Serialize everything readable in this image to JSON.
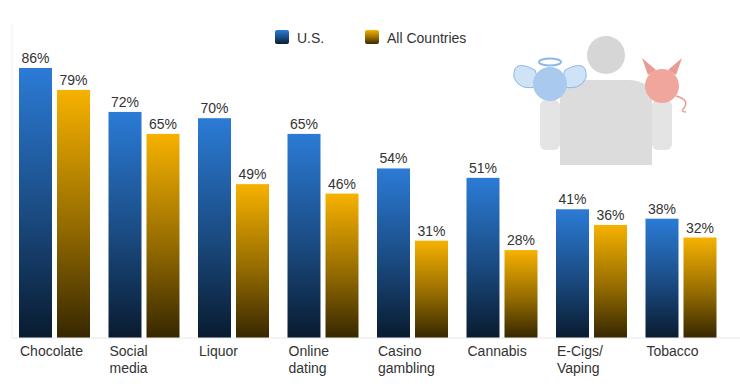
{
  "chart_data": {
    "type": "bar",
    "categories": [
      "Chocolate",
      "Social media",
      "Liquor",
      "Online dating",
      "Casino gambling",
      "Cannabis",
      "E-Cigs/ Vaping",
      "Tobacco"
    ],
    "series": [
      {
        "name": "U.S.",
        "color": "#2b7bd6",
        "values": [
          86,
          72,
          70,
          65,
          54,
          51,
          41,
          38
        ],
        "value_labels": [
          "86%",
          "72%",
          "70%",
          "65%",
          "54%",
          "51%",
          "41%",
          "38%"
        ]
      },
      {
        "name": "All Countries",
        "color": "#f7b200",
        "values": [
          79,
          65,
          49,
          46,
          31,
          28,
          36,
          32
        ],
        "value_labels": [
          "79%",
          "65%",
          "49%",
          "46%",
          "31%",
          "28%",
          "36%",
          "32%"
        ]
      }
    ],
    "ylim": [
      0,
      100
    ],
    "legend": "top",
    "data_labels": true,
    "tick_labels": "x",
    "grid": false
  }
}
